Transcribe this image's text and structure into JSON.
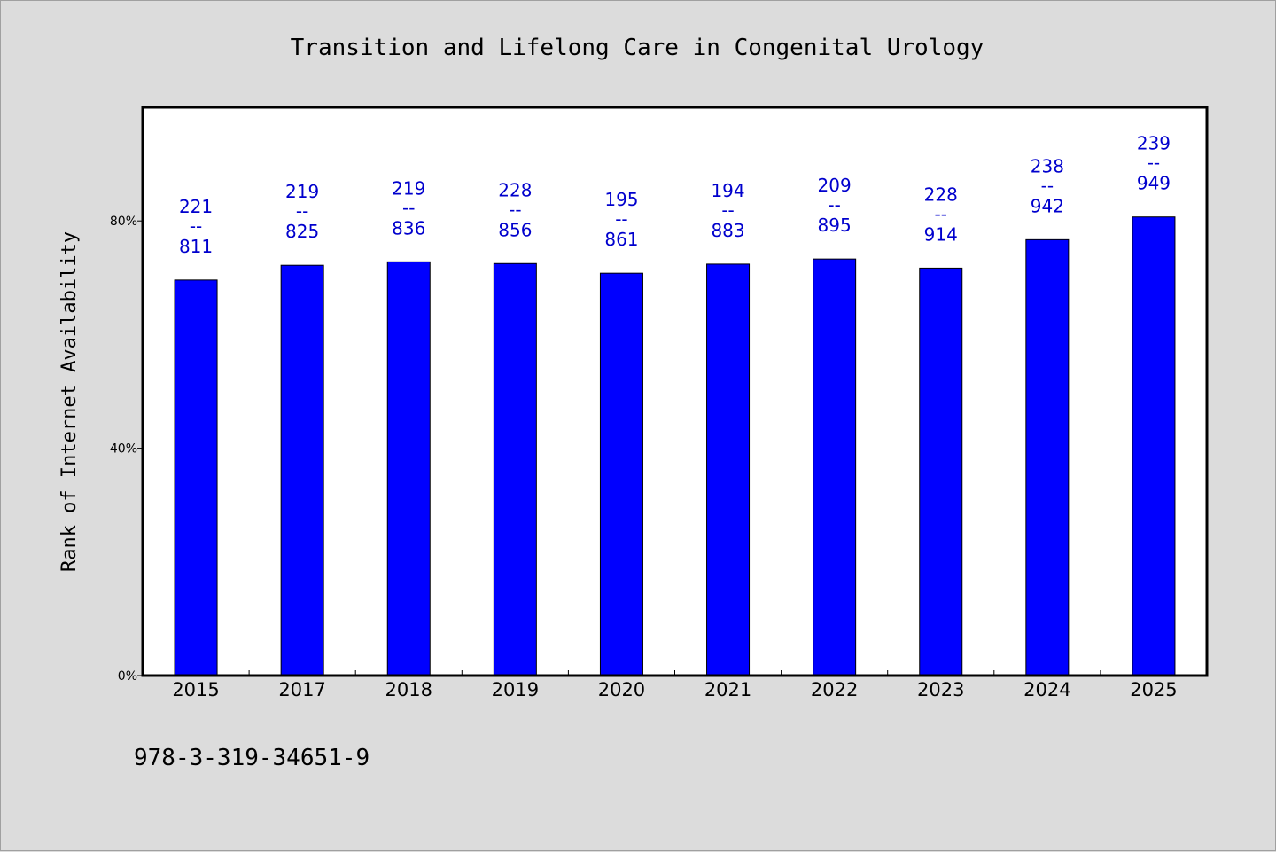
{
  "chart_data": {
    "type": "bar",
    "title": "Transition and Lifelong Care in Congenital Urology",
    "xlabel": "",
    "ylabel": "Rank of Internet Availability",
    "ylim": [
      0,
      100
    ],
    "yticks": [
      0,
      40,
      80
    ],
    "ytick_labels": [
      "0%",
      "40%",
      "80%"
    ],
    "grid": false,
    "categories": [
      "2015",
      "2017",
      "2018",
      "2019",
      "2020",
      "2021",
      "2022",
      "2023",
      "2024",
      "2025"
    ],
    "values": [
      69.6,
      72.2,
      72.8,
      72.5,
      70.8,
      72.4,
      73.3,
      71.7,
      76.7,
      80.7
    ],
    "data_labels": [
      {
        "top": "221",
        "mid": "--",
        "bottom": "811"
      },
      {
        "top": "219",
        "mid": "--",
        "bottom": "825"
      },
      {
        "top": "219",
        "mid": "--",
        "bottom": "836"
      },
      {
        "top": "228",
        "mid": "--",
        "bottom": "856"
      },
      {
        "top": "195",
        "mid": "--",
        "bottom": "861"
      },
      {
        "top": "194",
        "mid": "--",
        "bottom": "883"
      },
      {
        "top": "209",
        "mid": "--",
        "bottom": "895"
      },
      {
        "top": "228",
        "mid": "--",
        "bottom": "914"
      },
      {
        "top": "238",
        "mid": "--",
        "bottom": "942"
      },
      {
        "top": "239",
        "mid": "--",
        "bottom": "949"
      }
    ],
    "bar_color": "#0000ff",
    "label_color": "#0000cd",
    "plot_background": "#ffffff",
    "page_background": "#dcdcdc"
  },
  "footer": {
    "isbn": "978-3-319-34651-9"
  }
}
